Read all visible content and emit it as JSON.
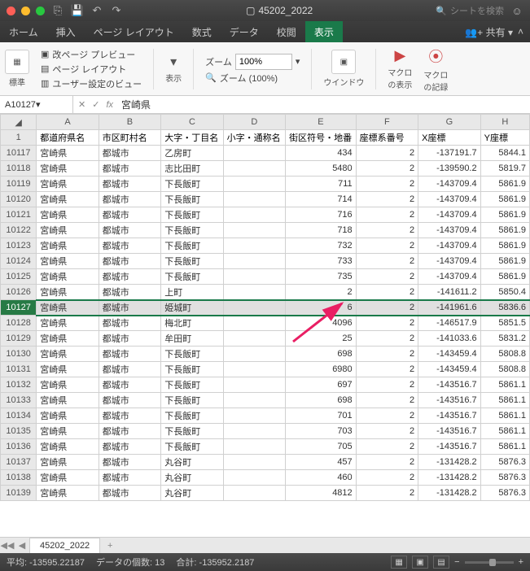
{
  "titlebar": {
    "filename": "45202_2022",
    "search_placeholder": "シートを検索"
  },
  "tabs": {
    "items": [
      "ホーム",
      "挿入",
      "ページ レイアウト",
      "数式",
      "データ",
      "校閲",
      "表示"
    ],
    "active": 6,
    "share": "共有"
  },
  "ribbon": {
    "standard": "標準",
    "page_break": "改ページ プレビュー",
    "page_layout": "ページ レイアウト",
    "user_views": "ユーザー設定のビュー",
    "display": "表示",
    "zoom_label": "ズーム",
    "zoom_value": "100%",
    "zoom_100": "ズーム (100%)",
    "window": "ウインドウ",
    "macro_view": "マクロ\nの表示",
    "macro_record": "マクロ\nの記録"
  },
  "formula": {
    "cell_ref": "A10127",
    "value": "宮崎県"
  },
  "columns": [
    "A",
    "B",
    "C",
    "D",
    "E",
    "F",
    "G",
    "H"
  ],
  "headers": [
    "都道府県名",
    "市区町村名",
    "大字・丁目名",
    "小字・通称名",
    "街区符号・地番",
    "座標系番号",
    "X座標",
    "Y座標"
  ],
  "selected_row": 10127,
  "rows": [
    {
      "n": 10117,
      "c": [
        "宮崎県",
        "都城市",
        "乙房町",
        "",
        434,
        2,
        -137191.7,
        5844.1
      ]
    },
    {
      "n": 10118,
      "c": [
        "宮崎県",
        "都城市",
        "志比田町",
        "",
        5480,
        2,
        -139590.2,
        5819.7
      ]
    },
    {
      "n": 10119,
      "c": [
        "宮崎県",
        "都城市",
        "下長飯町",
        "",
        711,
        2,
        -143709.4,
        5861.9
      ]
    },
    {
      "n": 10120,
      "c": [
        "宮崎県",
        "都城市",
        "下長飯町",
        "",
        714,
        2,
        -143709.4,
        5861.9
      ]
    },
    {
      "n": 10121,
      "c": [
        "宮崎県",
        "都城市",
        "下長飯町",
        "",
        716,
        2,
        -143709.4,
        5861.9
      ]
    },
    {
      "n": 10122,
      "c": [
        "宮崎県",
        "都城市",
        "下長飯町",
        "",
        718,
        2,
        -143709.4,
        5861.9
      ]
    },
    {
      "n": 10123,
      "c": [
        "宮崎県",
        "都城市",
        "下長飯町",
        "",
        732,
        2,
        -143709.4,
        5861.9
      ]
    },
    {
      "n": 10124,
      "c": [
        "宮崎県",
        "都城市",
        "下長飯町",
        "",
        733,
        2,
        -143709.4,
        5861.9
      ]
    },
    {
      "n": 10125,
      "c": [
        "宮崎県",
        "都城市",
        "下長飯町",
        "",
        735,
        2,
        -143709.4,
        5861.9
      ]
    },
    {
      "n": 10126,
      "c": [
        "宮崎県",
        "都城市",
        "上町",
        "",
        2,
        2,
        -141611.2,
        5850.4
      ]
    },
    {
      "n": 10127,
      "c": [
        "宮崎県",
        "都城市",
        "姫城町",
        "",
        6,
        2,
        -141961.6,
        5836.6
      ]
    },
    {
      "n": 10128,
      "c": [
        "宮崎県",
        "都城市",
        "梅北町",
        "",
        4096,
        2,
        -146517.9,
        5851.5
      ]
    },
    {
      "n": 10129,
      "c": [
        "宮崎県",
        "都城市",
        "牟田町",
        "",
        25,
        2,
        -141033.6,
        5831.2
      ]
    },
    {
      "n": 10130,
      "c": [
        "宮崎県",
        "都城市",
        "下長飯町",
        "",
        698,
        2,
        -143459.4,
        5808.8
      ]
    },
    {
      "n": 10131,
      "c": [
        "宮崎県",
        "都城市",
        "下長飯町",
        "",
        6980,
        2,
        -143459.4,
        5808.8
      ]
    },
    {
      "n": 10132,
      "c": [
        "宮崎県",
        "都城市",
        "下長飯町",
        "",
        697,
        2,
        -143516.7,
        5861.1
      ]
    },
    {
      "n": 10133,
      "c": [
        "宮崎県",
        "都城市",
        "下長飯町",
        "",
        698,
        2,
        -143516.7,
        5861.1
      ]
    },
    {
      "n": 10134,
      "c": [
        "宮崎県",
        "都城市",
        "下長飯町",
        "",
        701,
        2,
        -143516.7,
        5861.1
      ]
    },
    {
      "n": 10135,
      "c": [
        "宮崎県",
        "都城市",
        "下長飯町",
        "",
        703,
        2,
        -143516.7,
        5861.1
      ]
    },
    {
      "n": 10136,
      "c": [
        "宮崎県",
        "都城市",
        "下長飯町",
        "",
        705,
        2,
        -143516.7,
        5861.1
      ]
    },
    {
      "n": 10137,
      "c": [
        "宮崎県",
        "都城市",
        "丸谷町",
        "",
        457,
        2,
        -131428.2,
        5876.3
      ]
    },
    {
      "n": 10138,
      "c": [
        "宮崎県",
        "都城市",
        "丸谷町",
        "",
        460,
        2,
        -131428.2,
        5876.3
      ]
    },
    {
      "n": 10139,
      "c": [
        "宮崎県",
        "都城市",
        "丸谷町",
        "",
        4812,
        2,
        -131428.2,
        5876.3
      ]
    }
  ],
  "sheet_tab": "45202_2022",
  "status": {
    "avg_label": "平均:",
    "avg": "-13595.22187",
    "count_label": "データの個数:",
    "count": "13",
    "sum_label": "合計:",
    "sum": "-135952.2187"
  }
}
